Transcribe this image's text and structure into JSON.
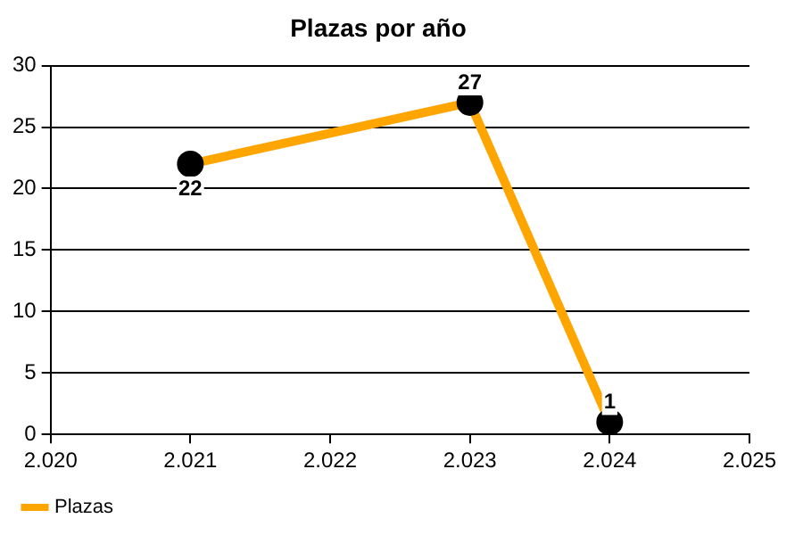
{
  "chart_data": {
    "type": "line",
    "title": "Plazas por año",
    "x": [
      2021,
      2023,
      2024
    ],
    "series": [
      {
        "name": "Plazas",
        "color": "#ffa500",
        "values": [
          22,
          27,
          1
        ]
      }
    ],
    "xlim": [
      2020,
      2025
    ],
    "xticks": [
      {
        "value": 2020,
        "label": "2.020"
      },
      {
        "value": 2021,
        "label": "2.021"
      },
      {
        "value": 2022,
        "label": "2.022"
      },
      {
        "value": 2023,
        "label": "2.023"
      },
      {
        "value": 2024,
        "label": "2.024"
      },
      {
        "value": 2025,
        "label": "2.025"
      }
    ],
    "ylim": [
      0,
      30
    ],
    "yticks": [
      0,
      5,
      10,
      15,
      20,
      25,
      30
    ],
    "grid": "y",
    "legend": "bottom left",
    "marker": "circle",
    "line_style": "solid",
    "data_labels": true
  }
}
